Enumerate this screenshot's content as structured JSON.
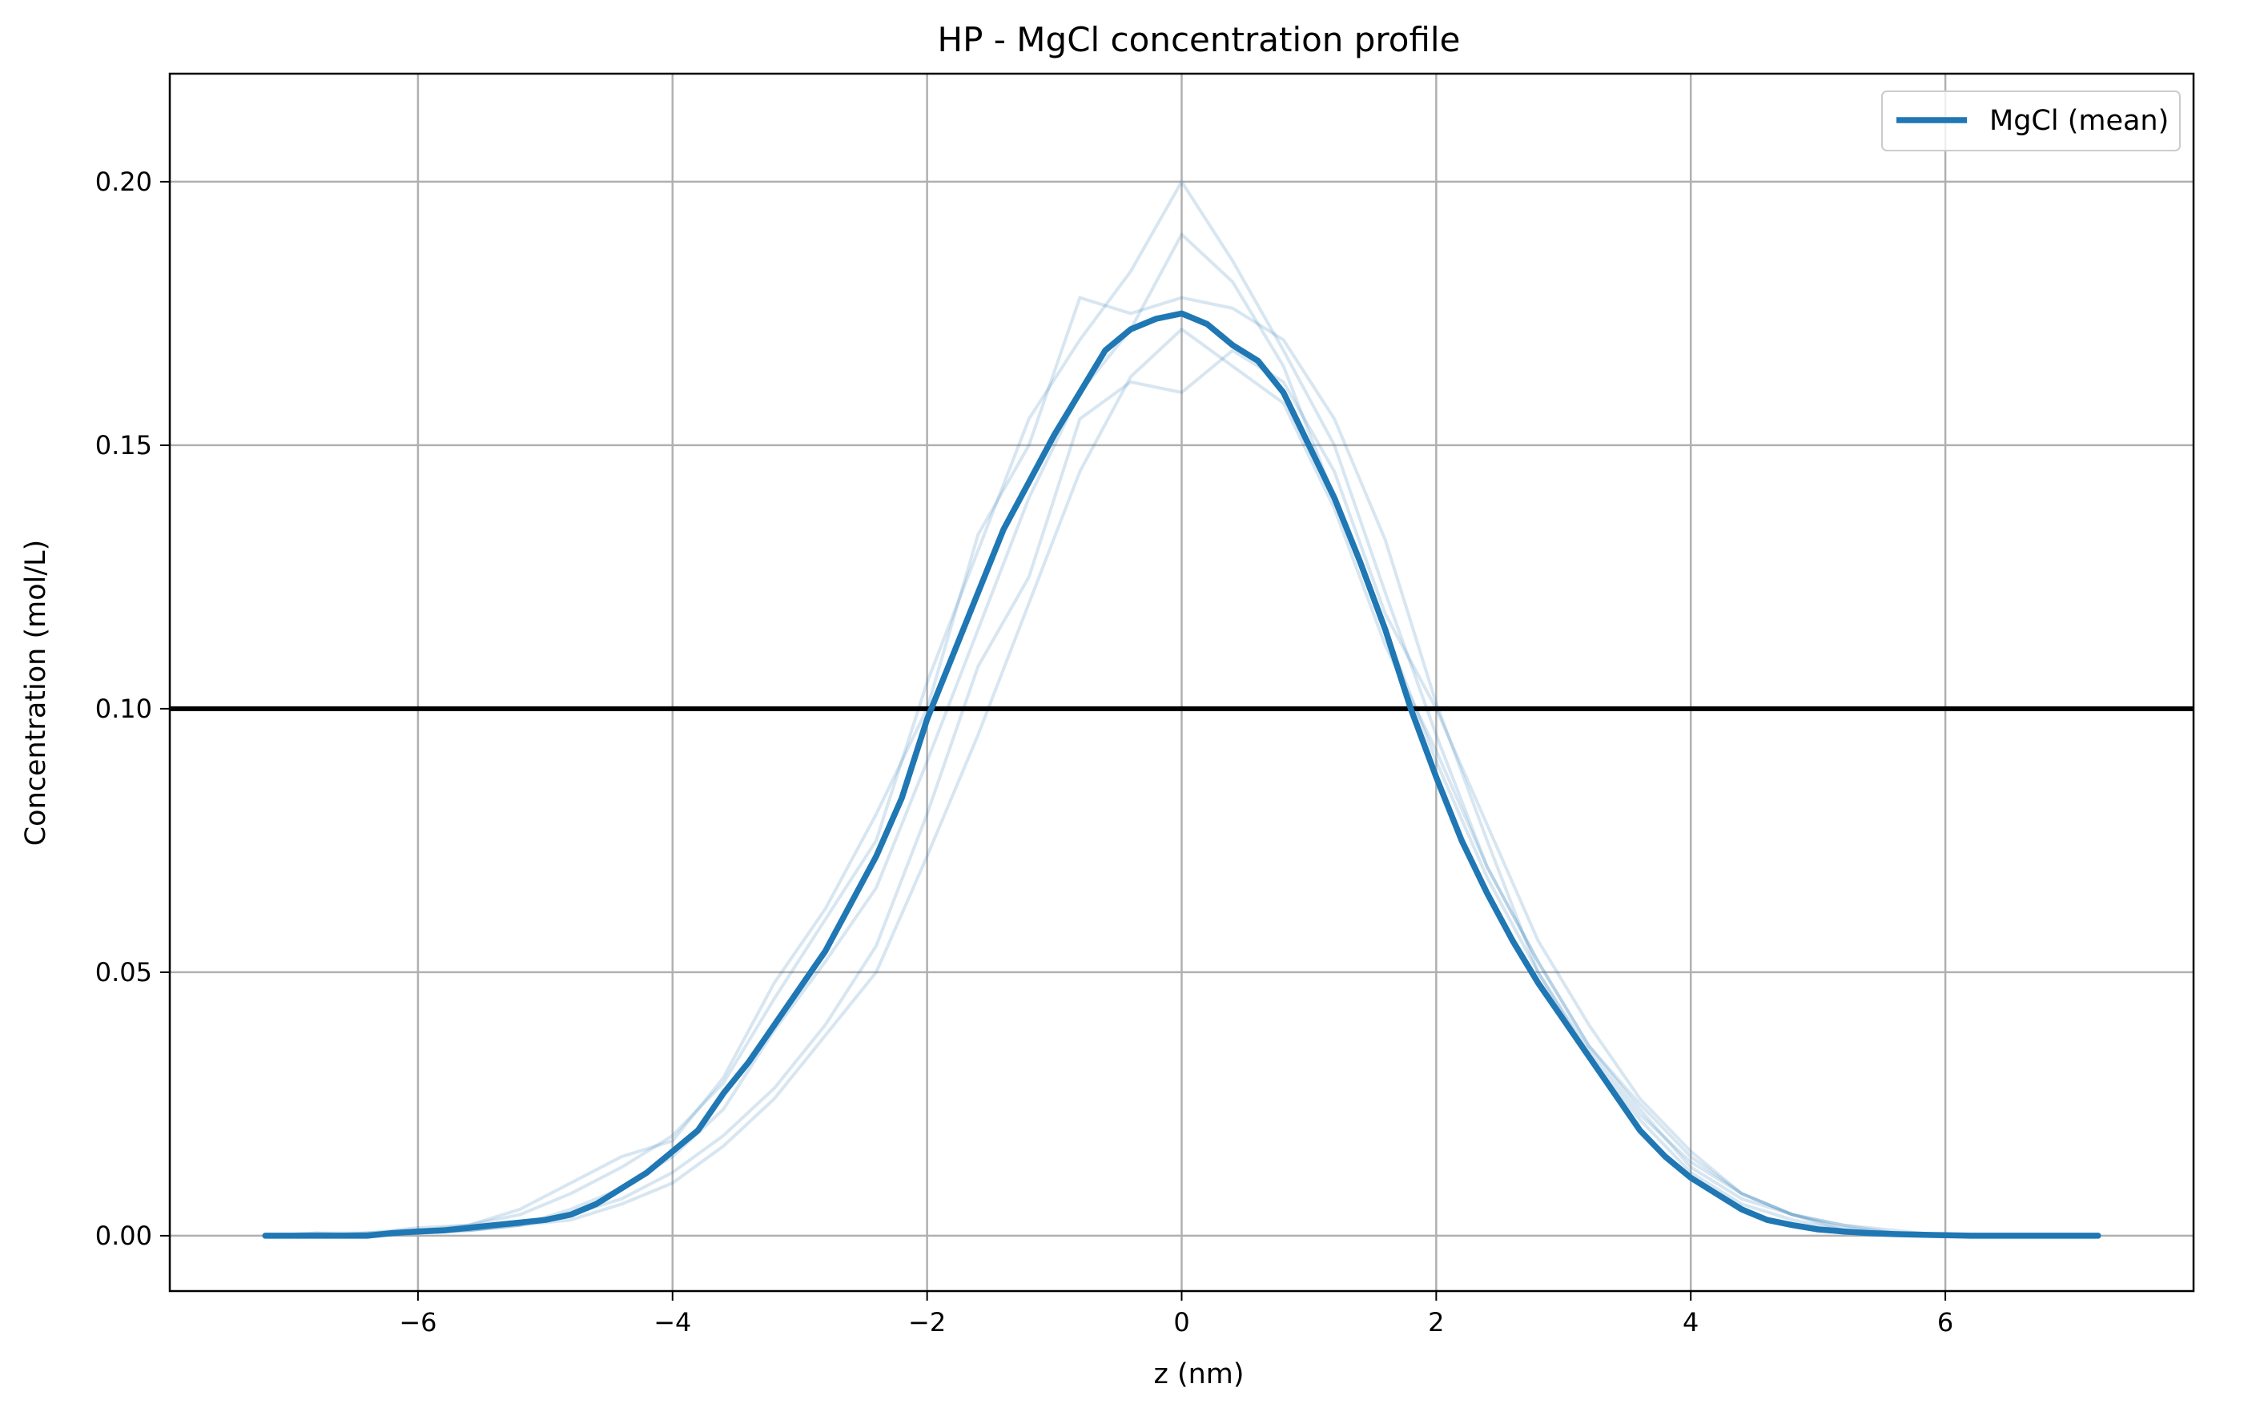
{
  "chart_data": {
    "type": "line",
    "title": "HP - MgCl concentration profile",
    "xlabel": "z (nm)",
    "ylabel": "Concentration (mol/L)",
    "xlim": [
      -7.95,
      7.95
    ],
    "ylim": [
      -0.0105,
      0.2205
    ],
    "xticks": [
      -6,
      -4,
      -2,
      0,
      2,
      4,
      6
    ],
    "yticks": [
      0.0,
      0.05,
      0.1,
      0.15,
      0.2
    ],
    "xtick_labels": [
      "−6",
      "−4",
      "−2",
      "0",
      "2",
      "4",
      "6"
    ],
    "ytick_labels": [
      "0.00",
      "0.05",
      "0.10",
      "0.15",
      "0.20"
    ],
    "grid": true,
    "legend_position": "top-right",
    "reference_line": {
      "y": 0.1,
      "color": "#000000"
    },
    "series_color": "#1f77b4",
    "series": [
      {
        "name": "MgCl (mean)",
        "style": "mean",
        "x": [
          -7.2,
          -7.0,
          -6.8,
          -6.6,
          -6.4,
          -6.2,
          -6.0,
          -5.8,
          -5.6,
          -5.4,
          -5.2,
          -5.0,
          -4.8,
          -4.6,
          -4.4,
          -4.2,
          -4.0,
          -3.8,
          -3.6,
          -3.4,
          -3.2,
          -3.0,
          -2.8,
          -2.6,
          -2.4,
          -2.2,
          -2.0,
          -1.8,
          -1.6,
          -1.4,
          -1.2,
          -1.0,
          -0.8,
          -0.6,
          -0.4,
          -0.2,
          0.0,
          0.2,
          0.4,
          0.6,
          0.8,
          1.0,
          1.2,
          1.4,
          1.6,
          1.8,
          2.0,
          2.2,
          2.4,
          2.6,
          2.8,
          3.0,
          3.2,
          3.4,
          3.6,
          3.8,
          4.0,
          4.2,
          4.4,
          4.6,
          4.8,
          5.0,
          5.2,
          5.4,
          5.6,
          5.8,
          6.0,
          6.2,
          6.4,
          6.6,
          6.8,
          7.0,
          7.2
        ],
        "y": [
          0.0,
          0.0,
          0.0,
          0.0,
          0.0,
          0.0005,
          0.0008,
          0.001,
          0.0015,
          0.002,
          0.0025,
          0.003,
          0.004,
          0.006,
          0.009,
          0.012,
          0.016,
          0.02,
          0.027,
          0.033,
          0.04,
          0.047,
          0.054,
          0.063,
          0.072,
          0.083,
          0.098,
          0.11,
          0.122,
          0.134,
          0.143,
          0.152,
          0.16,
          0.168,
          0.172,
          0.174,
          0.175,
          0.173,
          0.169,
          0.166,
          0.16,
          0.15,
          0.14,
          0.128,
          0.115,
          0.1,
          0.087,
          0.075,
          0.065,
          0.056,
          0.048,
          0.041,
          0.034,
          0.027,
          0.02,
          0.015,
          0.011,
          0.008,
          0.005,
          0.003,
          0.002,
          0.0012,
          0.0008,
          0.0005,
          0.0003,
          0.0002,
          0.0001,
          0.0,
          0.0,
          0.0,
          0.0,
          0.0,
          0.0
        ]
      },
      {
        "style": "replica",
        "x": [
          -7.2,
          -6.8,
          -6.4,
          -6.0,
          -5.6,
          -5.2,
          -4.8,
          -4.4,
          -4.0,
          -3.6,
          -3.2,
          -2.8,
          -2.4,
          -2.0,
          -1.6,
          -1.2,
          -0.8,
          -0.4,
          0.0,
          0.4,
          0.8,
          1.2,
          1.6,
          2.0,
          2.4,
          2.8,
          3.2,
          3.6,
          4.0,
          4.4,
          4.8,
          5.2,
          5.6,
          6.0
        ],
        "y": [
          0.0,
          0.0005,
          0.0,
          0.001,
          0.002,
          0.004,
          0.008,
          0.013,
          0.019,
          0.029,
          0.045,
          0.06,
          0.075,
          0.105,
          0.13,
          0.155,
          0.17,
          0.183,
          0.2,
          0.185,
          0.168,
          0.15,
          0.122,
          0.095,
          0.07,
          0.052,
          0.036,
          0.024,
          0.013,
          0.007,
          0.004,
          0.001,
          0.0005,
          0.0
        ]
      },
      {
        "style": "replica",
        "x": [
          -7.2,
          -6.8,
          -6.4,
          -6.0,
          -5.6,
          -5.2,
          -4.8,
          -4.4,
          -4.0,
          -3.6,
          -3.2,
          -2.8,
          -2.4,
          -2.0,
          -1.6,
          -1.2,
          -0.8,
          -0.4,
          0.0,
          0.4,
          0.8,
          1.2,
          1.6,
          2.0,
          2.4,
          2.8,
          3.2,
          3.6,
          4.0,
          4.4,
          4.8,
          5.2,
          5.6,
          6.0
        ],
        "y": [
          0.0,
          0.0,
          0.0005,
          0.001,
          0.001,
          0.002,
          0.004,
          0.007,
          0.012,
          0.019,
          0.028,
          0.04,
          0.055,
          0.08,
          0.108,
          0.125,
          0.155,
          0.162,
          0.16,
          0.168,
          0.162,
          0.145,
          0.118,
          0.1,
          0.078,
          0.056,
          0.04,
          0.026,
          0.016,
          0.008,
          0.004,
          0.002,
          0.001,
          0.0
        ]
      },
      {
        "style": "replica",
        "x": [
          -7.2,
          -6.8,
          -6.4,
          -6.0,
          -5.6,
          -5.2,
          -4.8,
          -4.4,
          -4.0,
          -3.6,
          -3.2,
          -2.8,
          -2.4,
          -2.0,
          -1.6,
          -1.2,
          -0.8,
          -0.4,
          0.0,
          0.4,
          0.8,
          1.2,
          1.6,
          2.0,
          2.4,
          2.8,
          3.2,
          3.6,
          4.0,
          4.4,
          4.8,
          5.2,
          5.6,
          6.0
        ],
        "y": [
          0.0,
          0.0005,
          0.0005,
          0.0015,
          0.002,
          0.005,
          0.01,
          0.015,
          0.018,
          0.03,
          0.048,
          0.062,
          0.08,
          0.1,
          0.133,
          0.15,
          0.178,
          0.175,
          0.178,
          0.176,
          0.17,
          0.155,
          0.132,
          0.101,
          0.075,
          0.05,
          0.034,
          0.022,
          0.012,
          0.006,
          0.003,
          0.001,
          0.0005,
          0.0
        ]
      },
      {
        "style": "replica",
        "x": [
          -7.2,
          -6.8,
          -6.4,
          -6.0,
          -5.6,
          -5.2,
          -4.8,
          -4.4,
          -4.0,
          -3.6,
          -3.2,
          -2.8,
          -2.4,
          -2.0,
          -1.6,
          -1.2,
          -0.8,
          -0.4,
          0.0,
          0.4,
          0.8,
          1.2,
          1.6,
          2.0,
          2.4,
          2.8,
          3.2,
          3.6,
          4.0,
          4.4,
          4.8,
          5.2,
          5.6,
          6.0
        ],
        "y": [
          0.0,
          0.0,
          0.0,
          0.0005,
          0.001,
          0.002,
          0.005,
          0.009,
          0.015,
          0.024,
          0.039,
          0.052,
          0.066,
          0.09,
          0.115,
          0.14,
          0.16,
          0.172,
          0.19,
          0.181,
          0.165,
          0.14,
          0.115,
          0.09,
          0.068,
          0.05,
          0.035,
          0.023,
          0.014,
          0.008,
          0.004,
          0.0015,
          0.0005,
          0.0
        ]
      },
      {
        "style": "replica",
        "x": [
          -7.2,
          -6.8,
          -6.4,
          -6.0,
          -5.6,
          -5.2,
          -4.8,
          -4.4,
          -4.0,
          -3.6,
          -3.2,
          -2.8,
          -2.4,
          -2.0,
          -1.6,
          -1.2,
          -0.8,
          -0.4,
          0.0,
          0.4,
          0.8,
          1.2,
          1.6,
          2.0,
          2.4,
          2.8,
          3.2,
          3.6,
          4.0,
          4.4,
          4.8,
          5.2,
          5.6,
          6.0
        ],
        "y": [
          0.0,
          0.0,
          0.0005,
          0.0005,
          0.001,
          0.002,
          0.003,
          0.006,
          0.01,
          0.017,
          0.026,
          0.038,
          0.05,
          0.072,
          0.095,
          0.12,
          0.145,
          0.163,
          0.172,
          0.165,
          0.158,
          0.138,
          0.112,
          0.092,
          0.07,
          0.052,
          0.036,
          0.025,
          0.015,
          0.008,
          0.004,
          0.002,
          0.0005,
          0.0
        ]
      }
    ]
  }
}
